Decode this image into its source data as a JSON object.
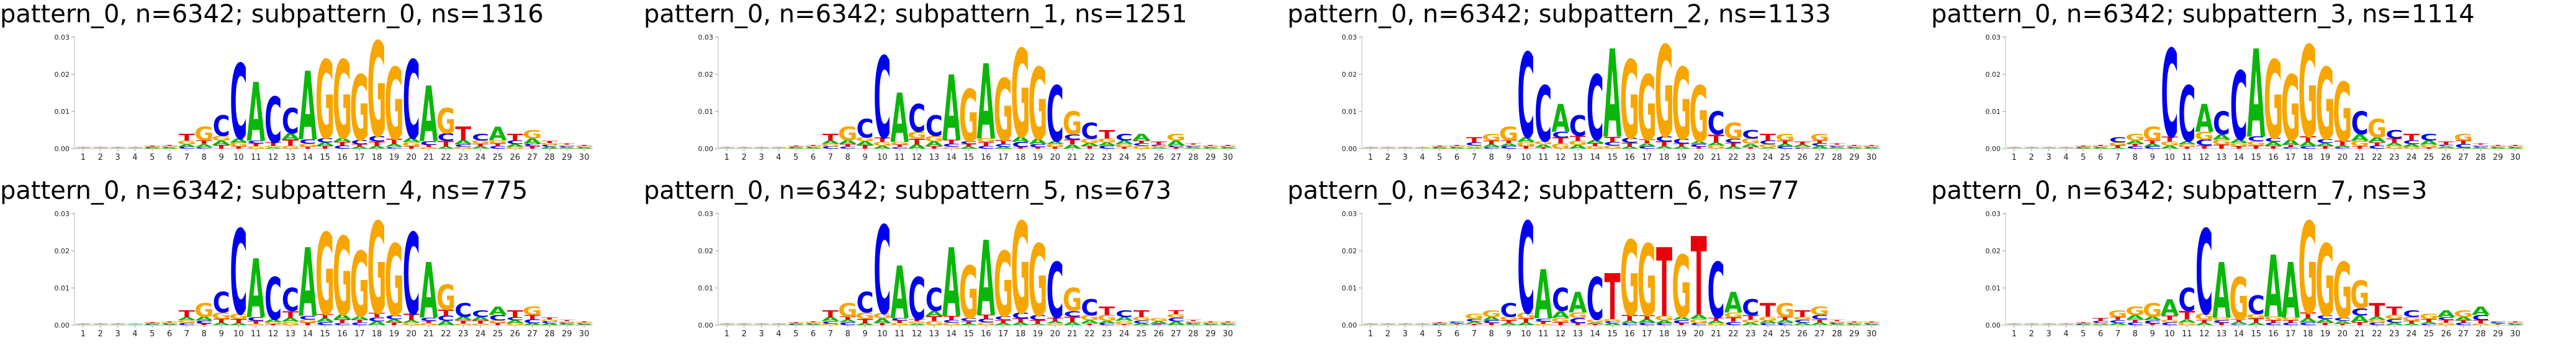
{
  "colors": {
    "A": "#0BB60B",
    "C": "#0000F0",
    "G": "#F7A600",
    "T": "#E8000B"
  },
  "chart_data": [
    {
      "type": "sequence-logo",
      "title": "pattern_0, n=6342; subpattern_0, ns=1316",
      "yticks": [
        "0.00",
        "0.01",
        "0.02",
        "0.03"
      ],
      "ylim": [
        0,
        0.03
      ],
      "positions": [
        "1",
        "2",
        "3",
        "4",
        "5",
        "6",
        "7",
        "8",
        "9",
        "10",
        "11",
        "12",
        "13",
        "14",
        "15",
        "16",
        "17",
        "18",
        "19",
        "20",
        "21",
        "22",
        "23",
        "24",
        "25",
        "26",
        "27",
        "28",
        "29",
        "30"
      ],
      "consensus": "NNNNNNTGCCACCAGGGGGCAGTCATGNNN",
      "heights": [
        0.0006,
        0.0006,
        0.0006,
        0.0006,
        0.0008,
        0.001,
        0.004,
        0.006,
        0.009,
        0.023,
        0.018,
        0.014,
        0.011,
        0.021,
        0.024,
        0.024,
        0.02,
        0.029,
        0.022,
        0.024,
        0.017,
        0.011,
        0.006,
        0.004,
        0.006,
        0.004,
        0.005,
        0.002,
        0.0014,
        0.001
      ]
    },
    {
      "type": "sequence-logo",
      "title": "pattern_0, n=6342; subpattern_1, ns=1251",
      "yticks": [
        "0.00",
        "0.01",
        "0.02",
        "0.03"
      ],
      "ylim": [
        0,
        0.03
      ],
      "positions": [
        "1",
        "2",
        "3",
        "4",
        "5",
        "6",
        "7",
        "8",
        "9",
        "10",
        "11",
        "12",
        "13",
        "14",
        "15",
        "16",
        "17",
        "18",
        "19",
        "20",
        "21",
        "22",
        "23",
        "24",
        "25",
        "26",
        "27",
        "28",
        "29",
        "30"
      ],
      "consensus": "NNNNNNTGCCACCAGAGGGCGCTCATGNNN",
      "heights": [
        0.0006,
        0.0006,
        0.0006,
        0.0006,
        0.0008,
        0.001,
        0.004,
        0.006,
        0.008,
        0.025,
        0.015,
        0.012,
        0.009,
        0.02,
        0.016,
        0.023,
        0.019,
        0.027,
        0.022,
        0.017,
        0.01,
        0.007,
        0.005,
        0.004,
        0.004,
        0.002,
        0.004,
        0.0014,
        0.001,
        0.001
      ]
    },
    {
      "type": "sequence-logo",
      "title": "pattern_0, n=6342; subpattern_2, ns=1133",
      "yticks": [
        "0.00",
        "0.01",
        "0.02",
        "0.03"
      ],
      "ylim": [
        0,
        0.03
      ],
      "positions": [
        "1",
        "2",
        "3",
        "4",
        "5",
        "6",
        "7",
        "8",
        "9",
        "10",
        "11",
        "12",
        "13",
        "14",
        "15",
        "16",
        "17",
        "18",
        "19",
        "20",
        "21",
        "22",
        "23",
        "24",
        "25",
        "26",
        "27",
        "28",
        "29",
        "30"
      ],
      "consensus": "NNNNNNTGGCCACCAGGGGGCGCTGTGNNN",
      "heights": [
        0.0006,
        0.0006,
        0.0006,
        0.0006,
        0.0008,
        0.001,
        0.003,
        0.004,
        0.006,
        0.026,
        0.017,
        0.012,
        0.009,
        0.02,
        0.027,
        0.024,
        0.02,
        0.028,
        0.022,
        0.017,
        0.01,
        0.007,
        0.005,
        0.004,
        0.004,
        0.002,
        0.004,
        0.0014,
        0.001,
        0.001
      ]
    },
    {
      "type": "sequence-logo",
      "title": "pattern_0, n=6342; subpattern_3, ns=1114",
      "yticks": [
        "0.00",
        "0.01",
        "0.02",
        "0.03"
      ],
      "ylim": [
        0,
        0.03
      ],
      "positions": [
        "1",
        "2",
        "3",
        "4",
        "5",
        "6",
        "7",
        "8",
        "9",
        "10",
        "11",
        "12",
        "13",
        "14",
        "15",
        "16",
        "17",
        "18",
        "19",
        "20",
        "21",
        "22",
        "23",
        "24",
        "25",
        "26",
        "27",
        "28",
        "29",
        "30"
      ],
      "consensus": "NNNNNNCGGCCACCAGGGGGCGCTCTGNNN",
      "heights": [
        0.0006,
        0.0006,
        0.0006,
        0.0006,
        0.0008,
        0.001,
        0.003,
        0.004,
        0.006,
        0.027,
        0.017,
        0.012,
        0.01,
        0.021,
        0.027,
        0.024,
        0.02,
        0.028,
        0.022,
        0.018,
        0.01,
        0.008,
        0.005,
        0.004,
        0.004,
        0.002,
        0.004,
        0.0014,
        0.001,
        0.001
      ]
    },
    {
      "type": "sequence-logo",
      "title": "pattern_0, n=6342; subpattern_4, ns=775",
      "yticks": [
        "0.00",
        "0.01",
        "0.02",
        "0.03"
      ],
      "ylim": [
        0,
        0.03
      ],
      "positions": [
        "1",
        "2",
        "3",
        "4",
        "5",
        "6",
        "7",
        "8",
        "9",
        "10",
        "11",
        "12",
        "13",
        "14",
        "15",
        "16",
        "17",
        "18",
        "19",
        "20",
        "21",
        "22",
        "23",
        "24",
        "25",
        "26",
        "27",
        "28",
        "29",
        "30"
      ],
      "consensus": "NNNNNNTGCCACCAGGGGGCAGCCATGNNN",
      "heights": [
        0.0006,
        0.0006,
        0.0006,
        0.0006,
        0.0008,
        0.001,
        0.004,
        0.006,
        0.009,
        0.026,
        0.018,
        0.013,
        0.01,
        0.021,
        0.025,
        0.024,
        0.02,
        0.028,
        0.022,
        0.025,
        0.017,
        0.011,
        0.006,
        0.004,
        0.005,
        0.004,
        0.005,
        0.002,
        0.0014,
        0.001
      ]
    },
    {
      "type": "sequence-logo",
      "title": "pattern_0, n=6342; subpattern_5, ns=673",
      "yticks": [
        "0.00",
        "0.01",
        "0.02",
        "0.03"
      ],
      "ylim": [
        0,
        0.03
      ],
      "positions": [
        "1",
        "2",
        "3",
        "4",
        "5",
        "6",
        "7",
        "8",
        "9",
        "10",
        "11",
        "12",
        "13",
        "14",
        "15",
        "16",
        "17",
        "18",
        "19",
        "20",
        "21",
        "22",
        "23",
        "24",
        "25",
        "26",
        "27",
        "28",
        "29",
        "30"
      ],
      "consensus": "NNNNNNTGCCACCAGAGGGCGCTCTGNNNN",
      "heights": [
        0.0006,
        0.0006,
        0.0006,
        0.0006,
        0.0008,
        0.001,
        0.004,
        0.006,
        0.009,
        0.027,
        0.016,
        0.013,
        0.01,
        0.021,
        0.016,
        0.023,
        0.02,
        0.028,
        0.022,
        0.017,
        0.01,
        0.007,
        0.005,
        0.004,
        0.004,
        0.002,
        0.004,
        0.0014,
        0.001,
        0.001
      ]
    },
    {
      "type": "sequence-logo",
      "title": "pattern_0, n=6342; subpattern_6, ns=77",
      "yticks": [
        "0.00",
        "0.01",
        "0.02",
        "0.03"
      ],
      "ylim": [
        0,
        0.03
      ],
      "positions": [
        "1",
        "2",
        "3",
        "4",
        "5",
        "6",
        "7",
        "8",
        "9",
        "10",
        "11",
        "12",
        "13",
        "14",
        "15",
        "16",
        "17",
        "18",
        "19",
        "20",
        "21",
        "22",
        "23",
        "24",
        "25",
        "26",
        "27",
        "28",
        "29",
        "30"
      ],
      "consensus": "NNNNNCGGCCACACTGGTGTCACTGTGNNN",
      "heights": [
        0.0006,
        0.0006,
        0.0006,
        0.0006,
        0.0008,
        0.001,
        0.003,
        0.004,
        0.006,
        0.028,
        0.015,
        0.01,
        0.009,
        0.013,
        0.014,
        0.023,
        0.022,
        0.021,
        0.019,
        0.024,
        0.017,
        0.009,
        0.007,
        0.006,
        0.006,
        0.004,
        0.005,
        0.0014,
        0.001,
        0.001
      ]
    },
    {
      "type": "sequence-logo",
      "title": "pattern_0, n=6342; subpattern_7, ns=3",
      "yticks": [
        "0.00",
        "0.01",
        "0.02",
        "0.03"
      ],
      "ylim": [
        0,
        0.03
      ],
      "positions": [
        "1",
        "2",
        "3",
        "4",
        "5",
        "6",
        "7",
        "8",
        "9",
        "10",
        "11",
        "12",
        "13",
        "14",
        "15",
        "16",
        "17",
        "18",
        "19",
        "20",
        "21",
        "22",
        "23",
        "24",
        "25",
        "26",
        "27",
        "28",
        "29",
        "30"
      ],
      "consensus": "NNNNNTGGGACCAGCAAGGGGTTCGAGACN",
      "heights": [
        0.0006,
        0.0006,
        0.0006,
        0.0006,
        0.0008,
        0.002,
        0.004,
        0.005,
        0.006,
        0.007,
        0.01,
        0.026,
        0.017,
        0.013,
        0.008,
        0.019,
        0.017,
        0.028,
        0.022,
        0.017,
        0.012,
        0.006,
        0.005,
        0.004,
        0.003,
        0.004,
        0.004,
        0.005,
        0.001,
        0.001
      ]
    }
  ]
}
